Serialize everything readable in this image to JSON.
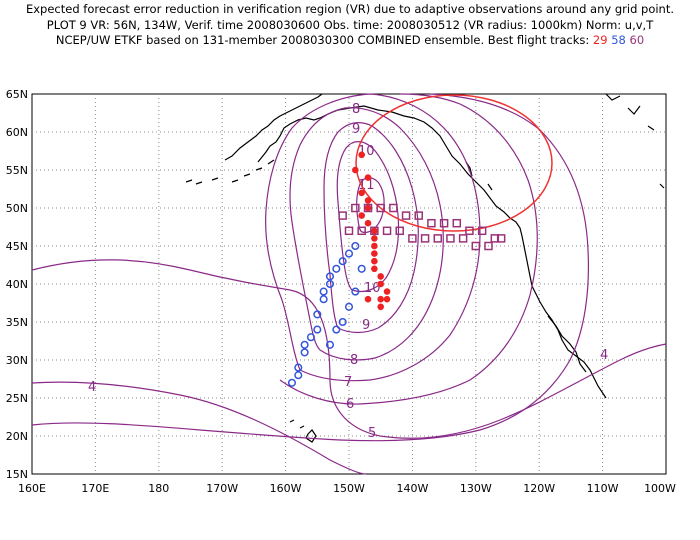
{
  "header": {
    "line1": "Expected forecast error reduction in verification region (VR) due to adaptive observations around any grid point.",
    "line2": "PLOT 9 VR: 56N, 134W, Verif. time 2008030600 Obs. time: 2008030512 (VR radius: 1000km) Norm: u,v,T",
    "line3": "NCEP/UW ETKF based on 131-member 2008030300 COMBINED ensemble.  Best flight tracks:",
    "track_29": "29",
    "track_58": "58",
    "track_60": "60"
  },
  "map": {
    "lon_range": [
      160,
      260
    ],
    "lat_range": [
      15,
      65
    ],
    "x_ticks": [
      "160E",
      "170E",
      "180",
      "170W",
      "160W",
      "150W",
      "140W",
      "130W",
      "120W",
      "110W",
      "100W"
    ],
    "y_ticks": [
      "65N",
      "60N",
      "55N",
      "50N",
      "45N",
      "40N",
      "35N",
      "30N",
      "25N",
      "20N",
      "15N"
    ],
    "contour_color": "#8a2a88",
    "contour_labels": [
      "4",
      "4",
      "5",
      "6",
      "7",
      "8",
      "8",
      "9",
      "9",
      "10",
      "10",
      "11"
    ],
    "verification_region": {
      "center_lon": 226,
      "center_lat": 56,
      "color": "#ee3333"
    },
    "tracks": [
      {
        "name": "29",
        "color": "#ee2222",
        "marker": "filled-circle",
        "points": [
          [
            212,
            57
          ],
          [
            211,
            55
          ],
          [
            213,
            54
          ],
          [
            212,
            52
          ],
          [
            213,
            51
          ],
          [
            213,
            50
          ],
          [
            212,
            49
          ],
          [
            213,
            48
          ],
          [
            214,
            47
          ],
          [
            214,
            46
          ],
          [
            214,
            45
          ],
          [
            214,
            44
          ],
          [
            214,
            43
          ],
          [
            214,
            42
          ],
          [
            215,
            41
          ],
          [
            215,
            40
          ],
          [
            216,
            39
          ],
          [
            216,
            38
          ],
          [
            215,
            38
          ],
          [
            215,
            37
          ],
          [
            213,
            38
          ]
        ]
      },
      {
        "name": "58",
        "color": "#3355dd",
        "marker": "open-circle",
        "points": [
          [
            211,
            45
          ],
          [
            210,
            44
          ],
          [
            209,
            43
          ],
          [
            208,
            42
          ],
          [
            207,
            41
          ],
          [
            207,
            40
          ],
          [
            206,
            39
          ],
          [
            206,
            38
          ],
          [
            205,
            36
          ],
          [
            205,
            34
          ],
          [
            204,
            33
          ],
          [
            203,
            32
          ],
          [
            203,
            31
          ],
          [
            202,
            29
          ],
          [
            202,
            28
          ],
          [
            201,
            27
          ],
          [
            207,
            32
          ],
          [
            208,
            34
          ],
          [
            209,
            35
          ],
          [
            210,
            37
          ],
          [
            211,
            39
          ],
          [
            212,
            42
          ]
        ]
      },
      {
        "name": "60",
        "color": "#993377",
        "marker": "open-square",
        "points": [
          [
            209,
            49
          ],
          [
            211,
            50
          ],
          [
            213,
            50
          ],
          [
            215,
            50
          ],
          [
            217,
            50
          ],
          [
            219,
            49
          ],
          [
            221,
            49
          ],
          [
            223,
            48
          ],
          [
            225,
            48
          ],
          [
            227,
            48
          ],
          [
            229,
            47
          ],
          [
            231,
            47
          ],
          [
            233,
            46
          ],
          [
            210,
            47
          ],
          [
            212,
            47
          ],
          [
            214,
            47
          ],
          [
            216,
            47
          ],
          [
            218,
            47
          ],
          [
            220,
            46
          ],
          [
            222,
            46
          ],
          [
            224,
            46
          ],
          [
            226,
            46
          ],
          [
            228,
            46
          ],
          [
            230,
            45
          ],
          [
            232,
            45
          ],
          [
            234,
            46
          ]
        ]
      }
    ]
  }
}
